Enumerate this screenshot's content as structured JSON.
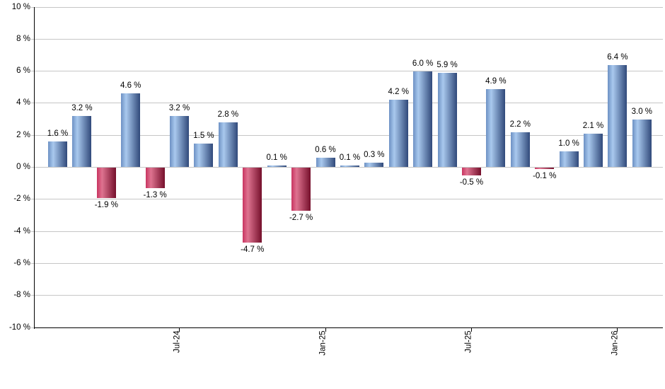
{
  "chart": {
    "background_color": "#ffffff",
    "grid_color": "#c6c6c6",
    "axis_color": "#000000",
    "text_color": "#000000",
    "positive_bar_colors": {
      "edge": "#6d91c4",
      "highlight": "#a9c9ee",
      "dark": "#30497a"
    },
    "negative_bar_colors": {
      "edge": "#c93561",
      "highlight": "#de7390",
      "dark": "#750f2b"
    }
  },
  "chart_data": {
    "type": "bar",
    "title": "",
    "xlabel": "",
    "ylabel": "",
    "ylim": [
      -10,
      10
    ],
    "grid": "horizontal",
    "legend": "none",
    "y_ticks": [
      10,
      8,
      6,
      4,
      2,
      0,
      -2,
      -4,
      -6,
      -8,
      -10
    ],
    "y_tick_labels": [
      "10 %",
      "8 %",
      "6 %",
      "4 %",
      "2 %",
      "0 %",
      "-2 %",
      "-4 %",
      "-6 %",
      "-8 %",
      "-10 %"
    ],
    "values": [
      1.6,
      3.2,
      -1.9,
      4.6,
      -1.3,
      3.2,
      1.5,
      2.8,
      -4.7,
      0.1,
      -2.7,
      0.6,
      0.1,
      0.3,
      4.2,
      6.0,
      5.9,
      -0.5,
      4.9,
      2.2,
      -0.1,
      1.0,
      2.1,
      6.4,
      3.0
    ],
    "value_labels": [
      "1.6 %",
      "3.2 %",
      "-1.9 %",
      "4.6 %",
      "-1.3 %",
      "3.2 %",
      "1.5 %",
      "2.8 %",
      "-4.7 %",
      "0.1 %",
      "-2.7 %",
      "0.6 %",
      "0.1 %",
      "0.3 %",
      "4.2 %",
      "6.0 %",
      "5.9 %",
      "-0.5 %",
      "4.9 %",
      "2.2 %",
      "-0.1 %",
      "1.0 %",
      "2.1 %",
      "6.4 %",
      "3.0 %"
    ],
    "x_tick_labels": [
      {
        "bar_index": 5,
        "label": "Jul-24"
      },
      {
        "bar_index": 11,
        "label": "Jan-25"
      },
      {
        "bar_index": 17,
        "label": "Jul-25"
      },
      {
        "bar_index": 23,
        "label": "Jan-26"
      }
    ]
  }
}
